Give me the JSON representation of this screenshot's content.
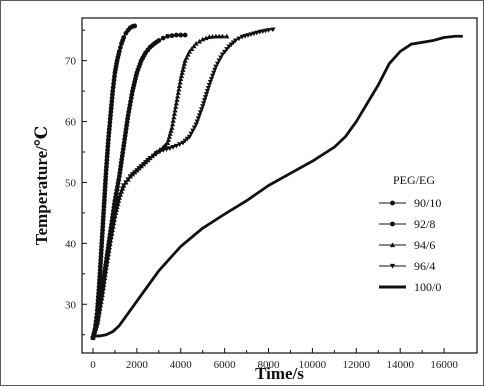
{
  "chart_data": {
    "type": "line",
    "xlabel": "Time/s",
    "ylabel": "Temperature/℃",
    "xlim": [
      -500,
      17500
    ],
    "ylim": [
      22,
      77
    ],
    "xticks": [
      0,
      2000,
      4000,
      6000,
      8000,
      10000,
      12000,
      14000,
      16000
    ],
    "yticks": [
      30,
      40,
      50,
      60,
      70
    ],
    "grid": false,
    "legend": {
      "title": "PEG/EG",
      "placement": "right-center"
    },
    "series": [
      {
        "name": "90/10",
        "marker": "circle",
        "points": [
          [
            0,
            24.5
          ],
          [
            100,
            26
          ],
          [
            200,
            29
          ],
          [
            300,
            34
          ],
          [
            400,
            40
          ],
          [
            500,
            46
          ],
          [
            600,
            52
          ],
          [
            700,
            57
          ],
          [
            800,
            61
          ],
          [
            900,
            65
          ],
          [
            1000,
            68
          ],
          [
            1100,
            70
          ],
          [
            1200,
            71.5
          ],
          [
            1300,
            72.8
          ],
          [
            1400,
            73.8
          ],
          [
            1500,
            74.5
          ],
          [
            1600,
            75
          ],
          [
            1700,
            75.4
          ],
          [
            1800,
            75.6
          ],
          [
            1900,
            75.7
          ]
        ]
      },
      {
        "name": "92/8",
        "marker": "circle",
        "points": [
          [
            0,
            24.5
          ],
          [
            200,
            27
          ],
          [
            400,
            32
          ],
          [
            600,
            37
          ],
          [
            800,
            42
          ],
          [
            1000,
            47
          ],
          [
            1200,
            51
          ],
          [
            1400,
            56
          ],
          [
            1600,
            61
          ],
          [
            1800,
            65
          ],
          [
            2000,
            68
          ],
          [
            2200,
            70
          ],
          [
            2400,
            71.3
          ],
          [
            2600,
            72.2
          ],
          [
            2800,
            72.8
          ],
          [
            3000,
            73.3
          ],
          [
            3200,
            73.7
          ],
          [
            3400,
            74
          ],
          [
            3600,
            74.1
          ],
          [
            3800,
            74.2
          ],
          [
            4000,
            74.2
          ],
          [
            4200,
            74.2
          ]
        ]
      },
      {
        "name": "94/6",
        "marker": "triangle-up",
        "points": [
          [
            0,
            24.5
          ],
          [
            200,
            27
          ],
          [
            400,
            31
          ],
          [
            600,
            36
          ],
          [
            800,
            40.5
          ],
          [
            1000,
            44.5
          ],
          [
            1200,
            47.5
          ],
          [
            1400,
            49.5
          ],
          [
            1700,
            51
          ],
          [
            2000,
            52
          ],
          [
            2300,
            53
          ],
          [
            2600,
            54
          ],
          [
            2900,
            55
          ],
          [
            3200,
            55.8
          ],
          [
            3400,
            56.5
          ],
          [
            3600,
            59
          ],
          [
            3800,
            63
          ],
          [
            4000,
            67
          ],
          [
            4200,
            70
          ],
          [
            4400,
            71.5
          ],
          [
            4700,
            72.8
          ],
          [
            5000,
            73.5
          ],
          [
            5300,
            73.9
          ],
          [
            5600,
            74
          ],
          [
            5900,
            74
          ],
          [
            6100,
            74
          ]
        ]
      },
      {
        "name": "96/4",
        "marker": "triangle-down",
        "points": [
          [
            0,
            24.5
          ],
          [
            200,
            27
          ],
          [
            400,
            31
          ],
          [
            600,
            36
          ],
          [
            800,
            40.5
          ],
          [
            1000,
            44.5
          ],
          [
            1200,
            47.5
          ],
          [
            1400,
            49.5
          ],
          [
            1700,
            51
          ],
          [
            2000,
            52
          ],
          [
            2300,
            53
          ],
          [
            2600,
            54
          ],
          [
            2900,
            54.8
          ],
          [
            3200,
            55.3
          ],
          [
            3500,
            55.6
          ],
          [
            3800,
            56
          ],
          [
            4100,
            56.5
          ],
          [
            4400,
            57.5
          ],
          [
            4700,
            59.5
          ],
          [
            5000,
            62.5
          ],
          [
            5300,
            66
          ],
          [
            5600,
            69
          ],
          [
            5900,
            71
          ],
          [
            6200,
            72.3
          ],
          [
            6500,
            73.3
          ],
          [
            6800,
            73.9
          ],
          [
            7200,
            74.3
          ],
          [
            7600,
            74.7
          ],
          [
            8000,
            75
          ],
          [
            8200,
            75.1
          ]
        ]
      },
      {
        "name": "100/0",
        "marker": "none",
        "thick": true,
        "points": [
          [
            0,
            24.8
          ],
          [
            300,
            24.8
          ],
          [
            600,
            25
          ],
          [
            900,
            25.5
          ],
          [
            1200,
            26.5
          ],
          [
            1500,
            28
          ],
          [
            2000,
            30.5
          ],
          [
            2500,
            33
          ],
          [
            3000,
            35.5
          ],
          [
            3500,
            37.5
          ],
          [
            4000,
            39.5
          ],
          [
            5000,
            42.5
          ],
          [
            6000,
            44.8
          ],
          [
            7000,
            47
          ],
          [
            8000,
            49.5
          ],
          [
            9000,
            51.5
          ],
          [
            10000,
            53.5
          ],
          [
            11000,
            55.8
          ],
          [
            11500,
            57.5
          ],
          [
            12000,
            60
          ],
          [
            12500,
            63
          ],
          [
            13000,
            66
          ],
          [
            13500,
            69.5
          ],
          [
            14000,
            71.5
          ],
          [
            14500,
            72.7
          ],
          [
            15000,
            73
          ],
          [
            15500,
            73.3
          ],
          [
            16000,
            73.8
          ],
          [
            16500,
            74
          ],
          [
            16800,
            74
          ]
        ]
      }
    ]
  }
}
